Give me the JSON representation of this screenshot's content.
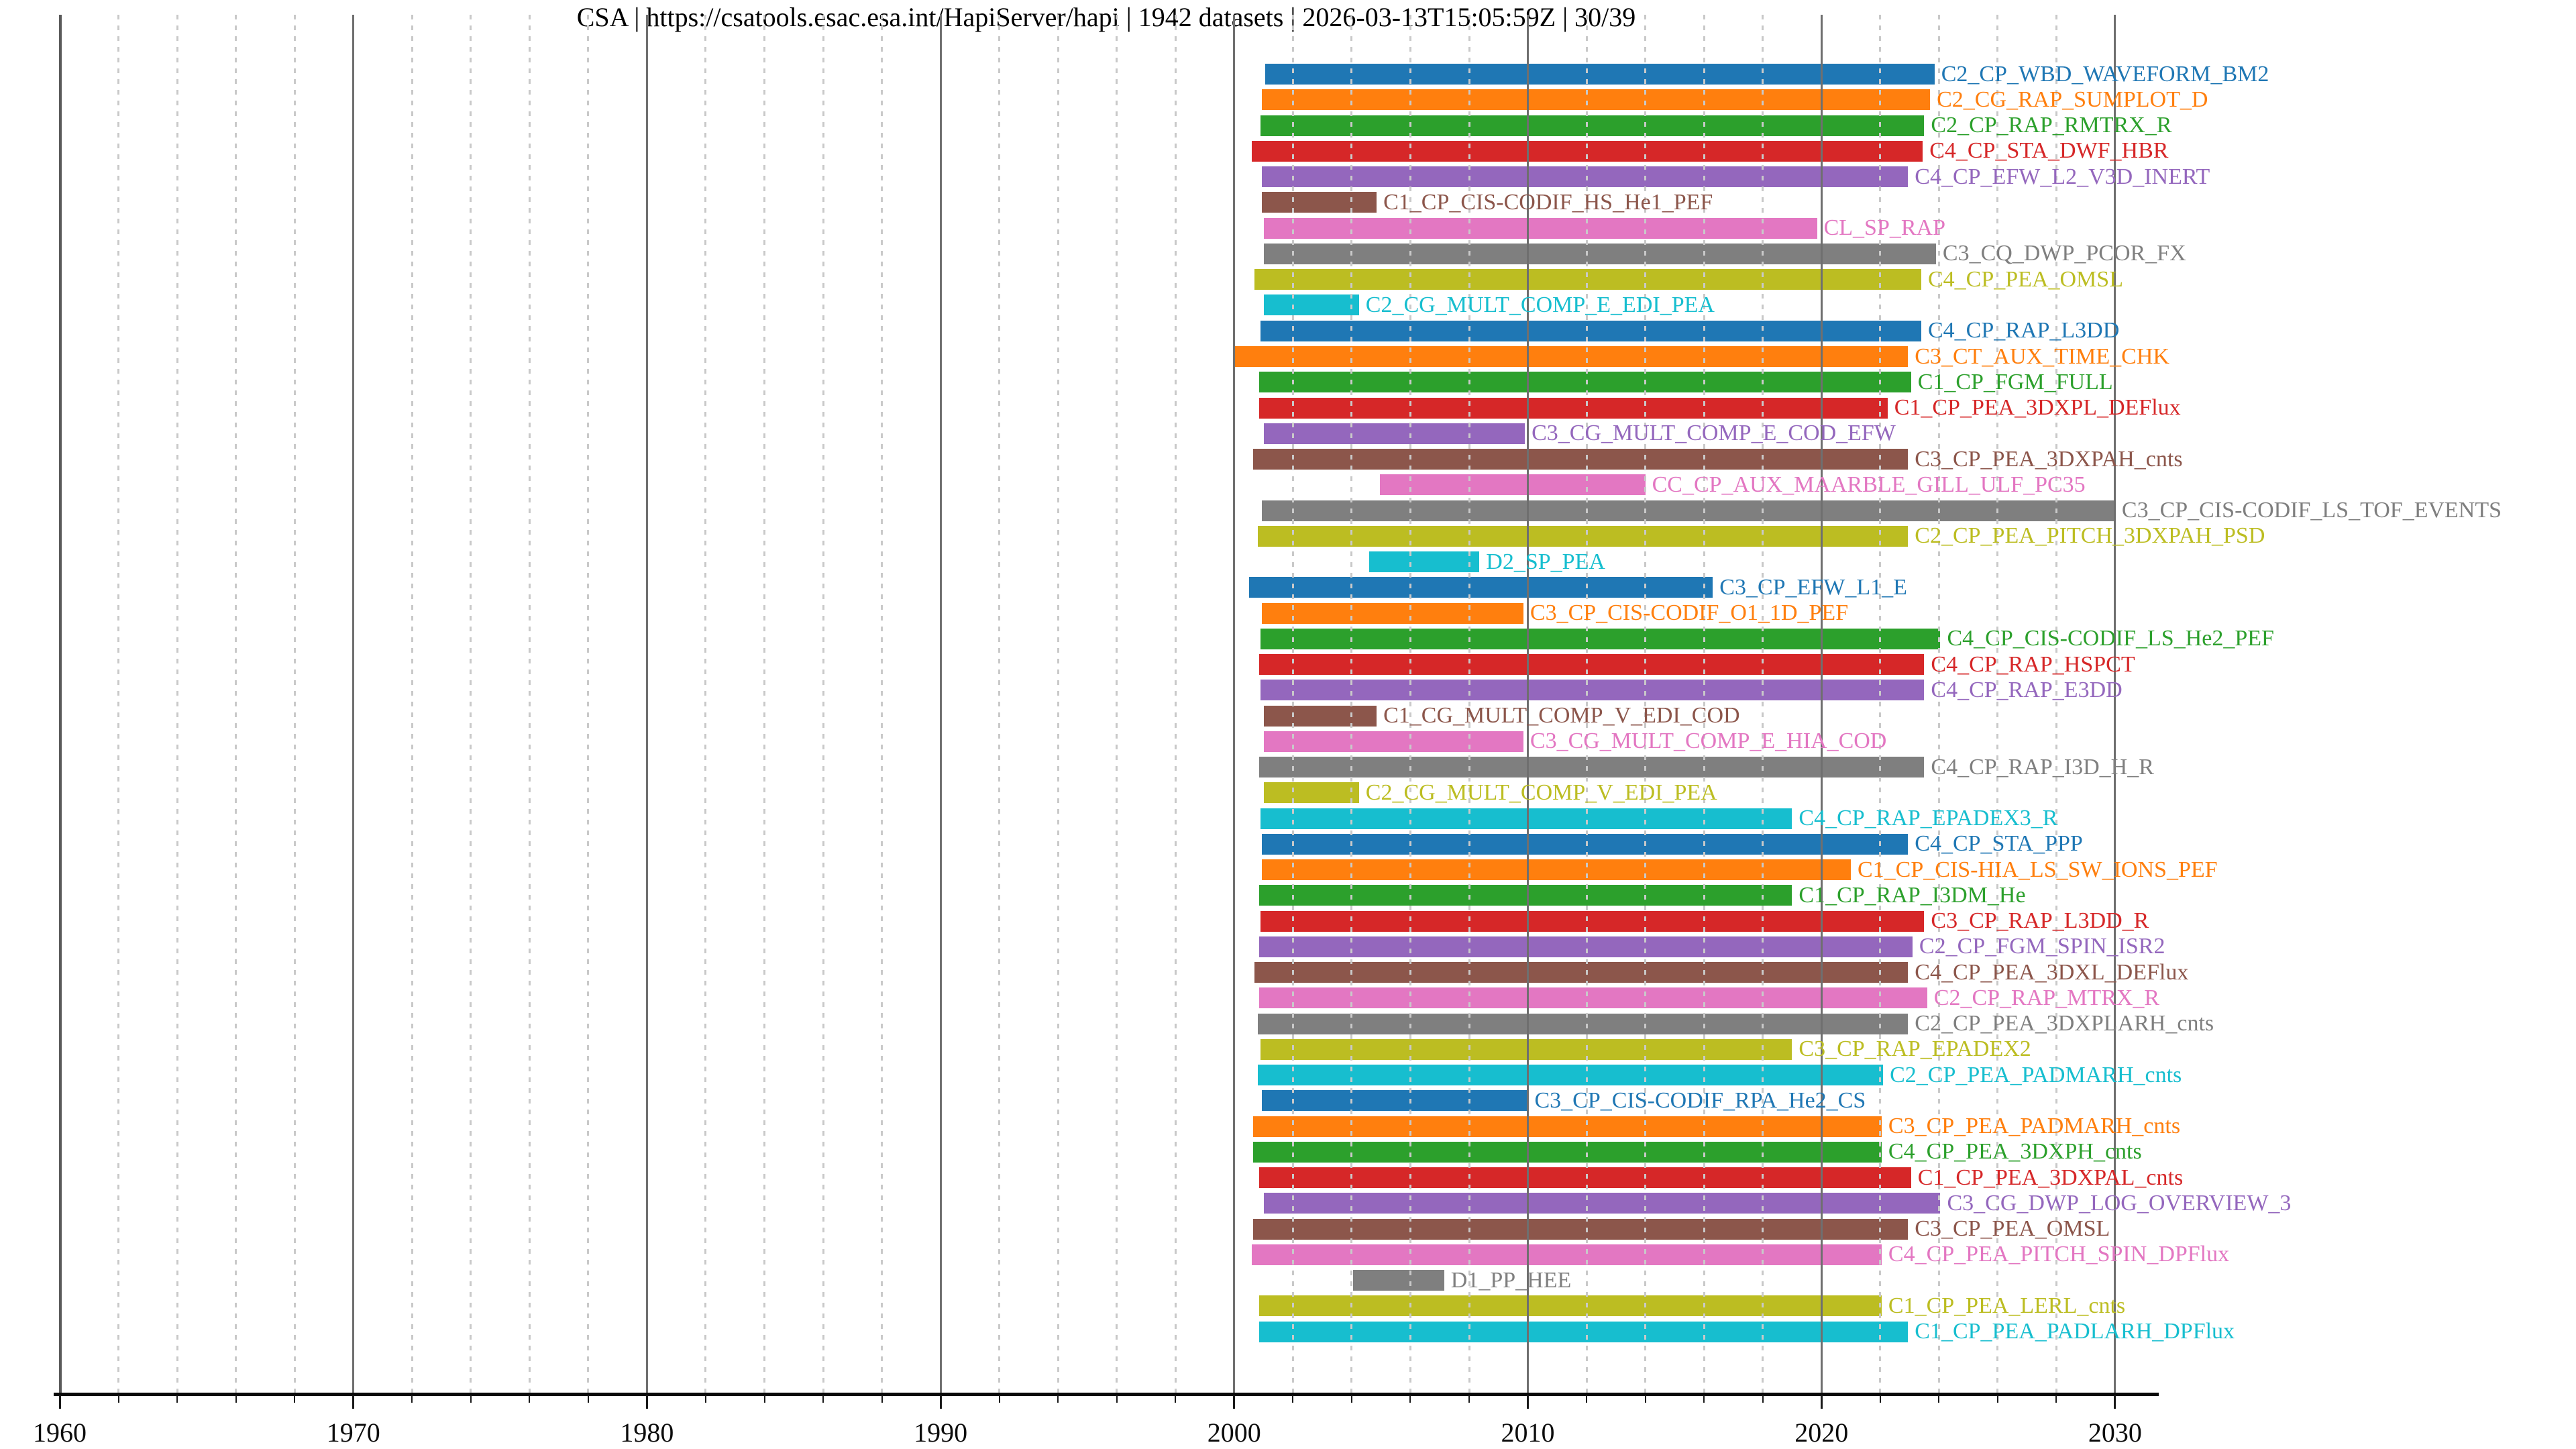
{
  "chart_data": {
    "type": "bar",
    "subtype": "gantt-timeline",
    "title": "CSA | https://csatools.esac.esa.int/HapiServer/hapi | 1942 datasets | 2026-03-13T15:05:59Z | 30/39",
    "x_axis": {
      "range": [
        1958.8,
        2031.5
      ],
      "major_ticks": [
        1960,
        1970,
        1980,
        1990,
        2000,
        2010,
        2020,
        2030
      ],
      "minor_tick_step_years": 2,
      "grid_major_style": "solid",
      "grid_minor_style": "dotted",
      "grid": true
    },
    "y_axis": {
      "label": "",
      "ticks": []
    },
    "legend": "none",
    "palette_tab10": [
      "#1f77b4",
      "#ff7f0e",
      "#2ca02c",
      "#d62728",
      "#9467bd",
      "#8c564b",
      "#e377c2",
      "#7f7f7f",
      "#bcbd22",
      "#17becf"
    ],
    "rows": [
      {
        "label": "C2_CP_WBD_WAVEFORM_BM2",
        "color": "#1f77b4",
        "start": 2001.05,
        "end": 2023.85
      },
      {
        "label": "C2_CG_RAP_SUMPLOT_D",
        "color": "#ff7f0e",
        "start": 2000.95,
        "end": 2023.7
      },
      {
        "label": "C2_CP_RAP_RMTRX_R",
        "color": "#2ca02c",
        "start": 2000.9,
        "end": 2023.5
      },
      {
        "label": "C4_CP_STA_DWF_HBR",
        "color": "#d62728",
        "start": 2000.6,
        "end": 2023.45
      },
      {
        "label": "C4_CP_EFW_L2_V3D_INERT",
        "color": "#9467bd",
        "start": 2000.95,
        "end": 2022.95
      },
      {
        "label": "C1_CP_CIS-CODIF_HS_He1_PEF",
        "color": "#8c564b",
        "start": 2000.95,
        "end": 2004.85
      },
      {
        "label": "CL_SP_RAP",
        "color": "#e377c2",
        "start": 2001.0,
        "end": 2019.85
      },
      {
        "label": "C3_CQ_DWP_PCOR_FX",
        "color": "#7f7f7f",
        "start": 2001.0,
        "end": 2023.9
      },
      {
        "label": "C4_CP_PEA_OMSL",
        "color": "#bcbd22",
        "start": 2000.7,
        "end": 2023.4
      },
      {
        "label": "C2_CG_MULT_COMP_E_EDI_PEA",
        "color": "#17becf",
        "start": 2001.0,
        "end": 2004.25
      },
      {
        "label": "C4_CP_RAP_L3DD",
        "color": "#1f77b4",
        "start": 2000.9,
        "end": 2023.4
      },
      {
        "label": "C3_CT_AUX_TIME_CHK",
        "color": "#ff7f0e",
        "start": 2000.0,
        "end": 2022.95
      },
      {
        "label": "C1_CP_FGM_FULL",
        "color": "#2ca02c",
        "start": 2000.85,
        "end": 2023.05
      },
      {
        "label": "C1_CP_PEA_3DXPL_DEFlux",
        "color": "#d62728",
        "start": 2000.85,
        "end": 2022.25
      },
      {
        "label": "C3_CG_MULT_COMP_E_COD_EFW",
        "color": "#9467bd",
        "start": 2001.0,
        "end": 2009.9
      },
      {
        "label": "C3_CP_PEA_3DXPAH_cnts",
        "color": "#8c564b",
        "start": 2000.65,
        "end": 2022.95
      },
      {
        "label": "CC_CP_AUX_MAARBLE_GILL_ULF_PC35",
        "color": "#e377c2",
        "start": 2004.95,
        "end": 2014.0
      },
      {
        "label": "C3_CP_CIS-CODIF_LS_TOF_EVENTS",
        "color": "#7f7f7f",
        "start": 2000.95,
        "end": 2030.0
      },
      {
        "label": "C2_CP_PEA_PITCH_3DXPAH_PSD",
        "color": "#bcbd22",
        "start": 2000.8,
        "end": 2022.95
      },
      {
        "label": "D2_SP_PEA",
        "color": "#17becf",
        "start": 2004.6,
        "end": 2008.35
      },
      {
        "label": "C3_CP_EFW_L1_E",
        "color": "#1f77b4",
        "start": 2000.5,
        "end": 2016.3
      },
      {
        "label": "C3_CP_CIS-CODIF_O1_1D_PEF",
        "color": "#ff7f0e",
        "start": 2000.95,
        "end": 2009.85
      },
      {
        "label": "C4_CP_CIS-CODIF_LS_He2_PEF",
        "color": "#2ca02c",
        "start": 2000.9,
        "end": 2024.05
      },
      {
        "label": "C4_CP_RAP_HSPCT",
        "color": "#d62728",
        "start": 2000.85,
        "end": 2023.5
      },
      {
        "label": "C4_CP_RAP_E3DD",
        "color": "#9467bd",
        "start": 2000.9,
        "end": 2023.5
      },
      {
        "label": "C1_CG_MULT_COMP_V_EDI_COD",
        "color": "#8c564b",
        "start": 2001.0,
        "end": 2004.85
      },
      {
        "label": "C3_CG_MULT_COMP_E_HIA_COD",
        "color": "#e377c2",
        "start": 2001.0,
        "end": 2009.85
      },
      {
        "label": "C4_CP_RAP_I3D_H_R",
        "color": "#7f7f7f",
        "start": 2000.85,
        "end": 2023.5
      },
      {
        "label": "C2_CG_MULT_COMP_V_EDI_PEA",
        "color": "#bcbd22",
        "start": 2001.0,
        "end": 2004.25
      },
      {
        "label": "C4_CP_RAP_EPADEX3_R",
        "color": "#17becf",
        "start": 2000.9,
        "end": 2019.0
      },
      {
        "label": "C4_CP_STA_PPP",
        "color": "#1f77b4",
        "start": 2000.95,
        "end": 2022.95
      },
      {
        "label": "C1_CP_CIS-HIA_LS_SW_IONS_PEF",
        "color": "#ff7f0e",
        "start": 2000.95,
        "end": 2021.0
      },
      {
        "label": "C1_CP_RAP_I3DM_He",
        "color": "#2ca02c",
        "start": 2000.85,
        "end": 2019.0
      },
      {
        "label": "C3_CP_RAP_L3DD_R",
        "color": "#d62728",
        "start": 2000.9,
        "end": 2023.5
      },
      {
        "label": "C2_CP_FGM_SPIN_ISR2",
        "color": "#9467bd",
        "start": 2000.85,
        "end": 2023.1
      },
      {
        "label": "C4_CP_PEA_3DXL_DEFlux",
        "color": "#8c564b",
        "start": 2000.7,
        "end": 2022.95
      },
      {
        "label": "C2_CP_RAP_MTRX_R",
        "color": "#e377c2",
        "start": 2000.85,
        "end": 2023.6
      },
      {
        "label": "C2_CP_PEA_3DXPLARH_cnts",
        "color": "#7f7f7f",
        "start": 2000.8,
        "end": 2022.95
      },
      {
        "label": "C3_CP_RAP_EPADEX2",
        "color": "#bcbd22",
        "start": 2000.9,
        "end": 2019.0
      },
      {
        "label": "C2_CP_PEA_PADMARH_cnts",
        "color": "#17becf",
        "start": 2000.8,
        "end": 2022.1
      },
      {
        "label": "C3_CP_CIS-CODIF_RPA_He2_CS",
        "color": "#1f77b4",
        "start": 2000.95,
        "end": 2010.0
      },
      {
        "label": "C3_CP_PEA_PADMARH_cnts",
        "color": "#ff7f0e",
        "start": 2000.65,
        "end": 2022.05
      },
      {
        "label": "C4_CP_PEA_3DXPH_cnts",
        "color": "#2ca02c",
        "start": 2000.65,
        "end": 2022.05
      },
      {
        "label": "C1_CP_PEA_3DXPAL_cnts",
        "color": "#d62728",
        "start": 2000.85,
        "end": 2023.05
      },
      {
        "label": "C3_CG_DWP_LOG_OVERVIEW_3",
        "color": "#9467bd",
        "start": 2001.0,
        "end": 2024.05
      },
      {
        "label": "C3_CP_PEA_OMSL",
        "color": "#8c564b",
        "start": 2000.65,
        "end": 2022.95
      },
      {
        "label": "C4_CP_PEA_PITCH_SPIN_DPFlux",
        "color": "#e377c2",
        "start": 2000.6,
        "end": 2022.05
      },
      {
        "label": "D1_PP_HEE",
        "color": "#7f7f7f",
        "start": 2004.05,
        "end": 2007.15
      },
      {
        "label": "C1_CP_PEA_LERL_cnts",
        "color": "#bcbd22",
        "start": 2000.85,
        "end": 2022.05
      },
      {
        "label": "C1_CP_PEA_PADLARH_DPFlux",
        "color": "#17becf",
        "start": 2000.85,
        "end": 2022.95
      }
    ]
  }
}
